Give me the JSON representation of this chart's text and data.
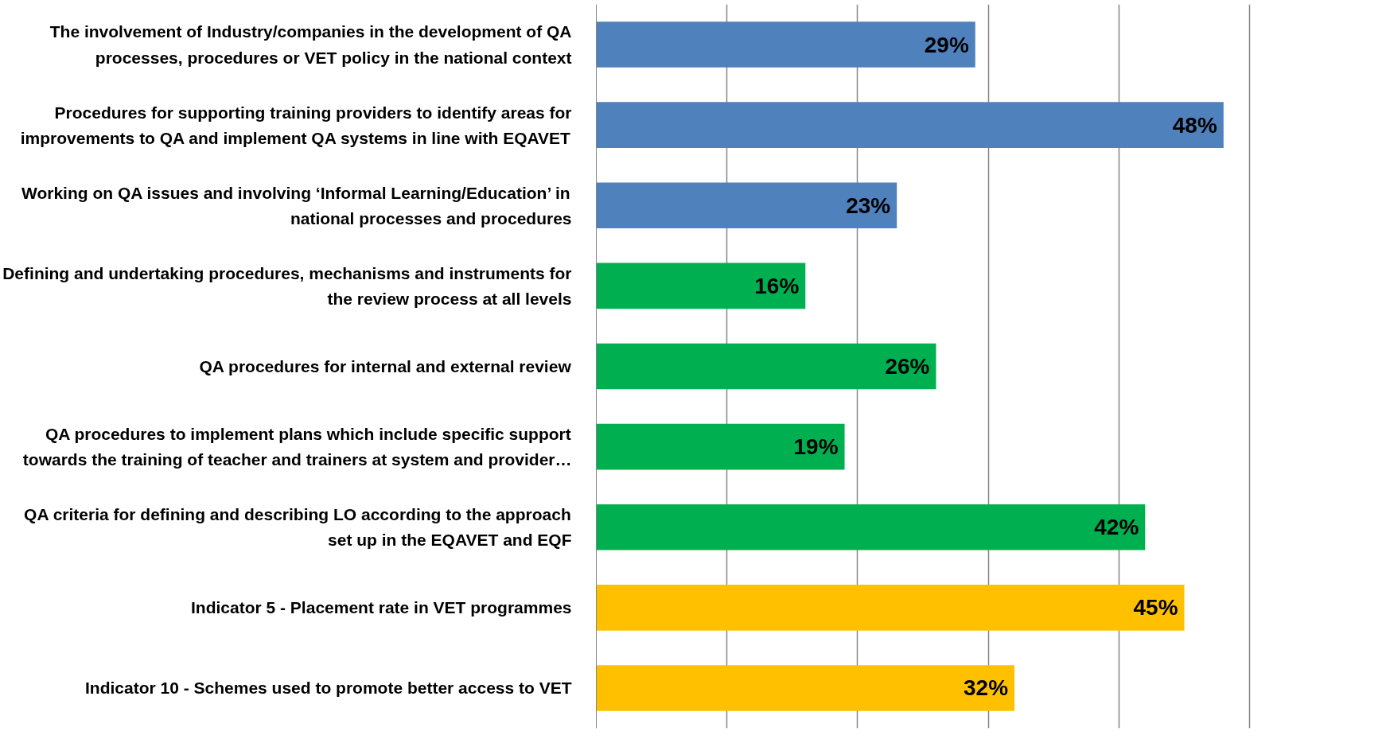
{
  "chart_data": {
    "type": "bar",
    "orientation": "horizontal",
    "categories": [
      "The involvement of Industry/companies in the development of QA processes, procedures or VET policy in the national context",
      "Procedures for supporting training providers to identify areas for improvements to QA and implement QA systems in line with EQAVET",
      "Working on QA issues and involving ‘Informal Learning/Education’ in national processes and procedures",
      "Defining and undertaking procedures, mechanisms and instruments for the review process at all levels",
      "QA procedures for internal and external review",
      "QA procedures to implement plans which include specific support towards the training of teacher and trainers at system and provider…",
      "QA criteria for defining and describing LO according to the approach set up in the EQAVET and EQF",
      "Indicator 5 - Placement rate in VET programmes",
      "Indicator 10 - Schemes used to promote better access to VET"
    ],
    "values": [
      29,
      48,
      23,
      16,
      26,
      19,
      42,
      45,
      32
    ],
    "value_labels": [
      "29%",
      "48%",
      "23%",
      "16%",
      "26%",
      "19%",
      "42%",
      "45%",
      "32%"
    ],
    "colors": [
      "#4f81bd",
      "#4f81bd",
      "#4f81bd",
      "#00b050",
      "#00b050",
      "#00b050",
      "#00b050",
      "#ffc000",
      "#ffc000"
    ],
    "xticks": [
      {
        "value": 0,
        "label": null
      },
      {
        "value": 10,
        "label": null
      },
      {
        "value": 20,
        "label": null
      },
      {
        "value": 30,
        "label": null
      },
      {
        "value": 40,
        "label": null
      },
      {
        "value": 50,
        "label": null
      }
    ],
    "grid": "x",
    "tick_labels": "y"
  }
}
